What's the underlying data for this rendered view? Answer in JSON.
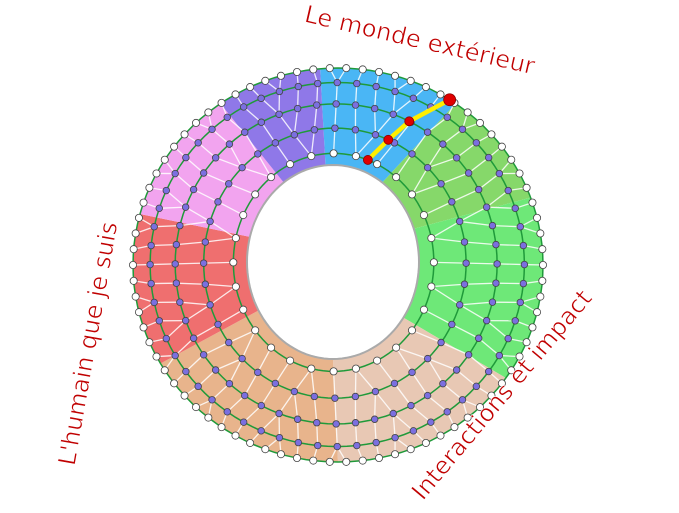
{
  "labels": {
    "top": "Le monde extérieur",
    "left": "L'humain que je suis",
    "right": "Interactions et impact"
  },
  "colors": {
    "text": "#c00000",
    "ring_line": "#1f9a3a",
    "outer_dot": "#ffffff",
    "inner_dot": "#7b6fe0",
    "path": "#ffee00",
    "path_dot": "#e00000",
    "sectors": [
      "#4ab6f5",
      "#86d86a",
      "#6ee878",
      "#e8c8b4",
      "#e8b48c",
      "#ef6f6f",
      "#f2a4ef",
      "#8f78e8"
    ]
  }
}
